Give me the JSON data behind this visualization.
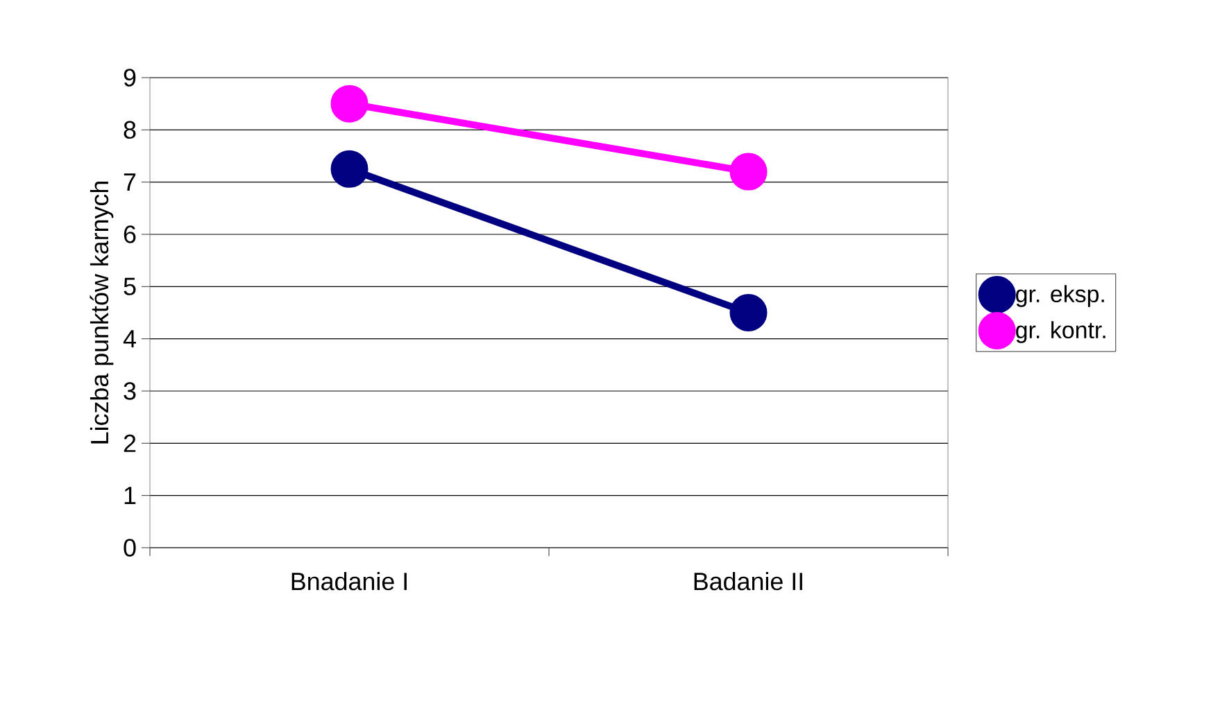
{
  "chart_data": {
    "type": "line",
    "ylabel": "Liczba punktów karnych",
    "categories": [
      "Bnadanie I",
      "Badanie II"
    ],
    "series": [
      {
        "name": "gr. eksp.",
        "color": "#000080",
        "values": [
          7.25,
          4.5
        ]
      },
      {
        "name": "gr. kontr.",
        "color": "#ff00ff",
        "values": [
          8.5,
          7.2
        ]
      }
    ],
    "ylim": [
      0,
      9
    ],
    "yticks": [
      0,
      1,
      2,
      3,
      4,
      5,
      6,
      7,
      8,
      9
    ],
    "grid": "y",
    "legend": "right",
    "marker": "circle",
    "line_style": "solid"
  }
}
